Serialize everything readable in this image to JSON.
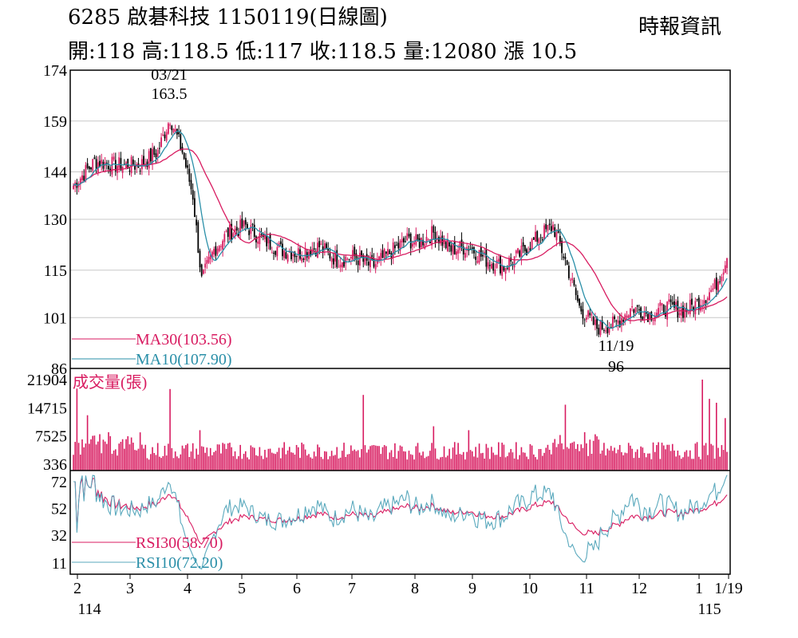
{
  "header": {
    "title": "6285  啟碁科技 1150119(日線圖)",
    "source": "時報資訊",
    "quote": "開:118 高:118.5 低:117 收:118.5 量:12080 漲 10.5"
  },
  "colors": {
    "up": "#d81b60",
    "down": "#000000",
    "ma30": "#d81b60",
    "ma10": "#2a8fa8",
    "volume": "#d81b60",
    "rsi30": "#d81b60",
    "rsi10": "#5aa9bd",
    "grid": "#c8c8c8"
  },
  "chart_data": [
    {
      "type": "candlestick",
      "name": "price",
      "ylim": [
        86,
        174
      ],
      "yticks": [
        "174",
        "159",
        "144",
        "130",
        "115",
        "101",
        "86"
      ],
      "ytick_values": [
        174,
        159,
        144,
        130,
        115,
        101,
        86
      ],
      "annotations": [
        {
          "date": "03/21",
          "value": "163.5"
        },
        {
          "date": "11/19",
          "value": "96"
        }
      ],
      "legend": [
        {
          "label": "MA30(103.56)",
          "color": "ma30"
        },
        {
          "label": "MA10(107.90)",
          "color": "ma10"
        }
      ],
      "last_close": 118.5
    },
    {
      "type": "bar",
      "name": "volume",
      "title": "成交量(張)",
      "yticks": [
        "21904",
        "14715",
        "7525",
        "336"
      ],
      "ytick_values": [
        21904,
        14715,
        7525,
        336
      ],
      "last_value": 12080
    },
    {
      "type": "line",
      "name": "rsi",
      "yticks": [
        "72",
        "52",
        "32",
        "11"
      ],
      "ytick_values": [
        72,
        52,
        32,
        11
      ],
      "legend": [
        {
          "label": "RSI30(58.70)",
          "color": "rsi30"
        },
        {
          "label": "RSI10(72.20)",
          "color": "rsi10"
        }
      ]
    }
  ],
  "x_axis": {
    "months": [
      "2",
      "3",
      "4",
      "5",
      "6",
      "7",
      "8",
      "9",
      "10",
      "11",
      "12",
      "1",
      "1/19"
    ],
    "years": [
      "114",
      "115"
    ]
  }
}
